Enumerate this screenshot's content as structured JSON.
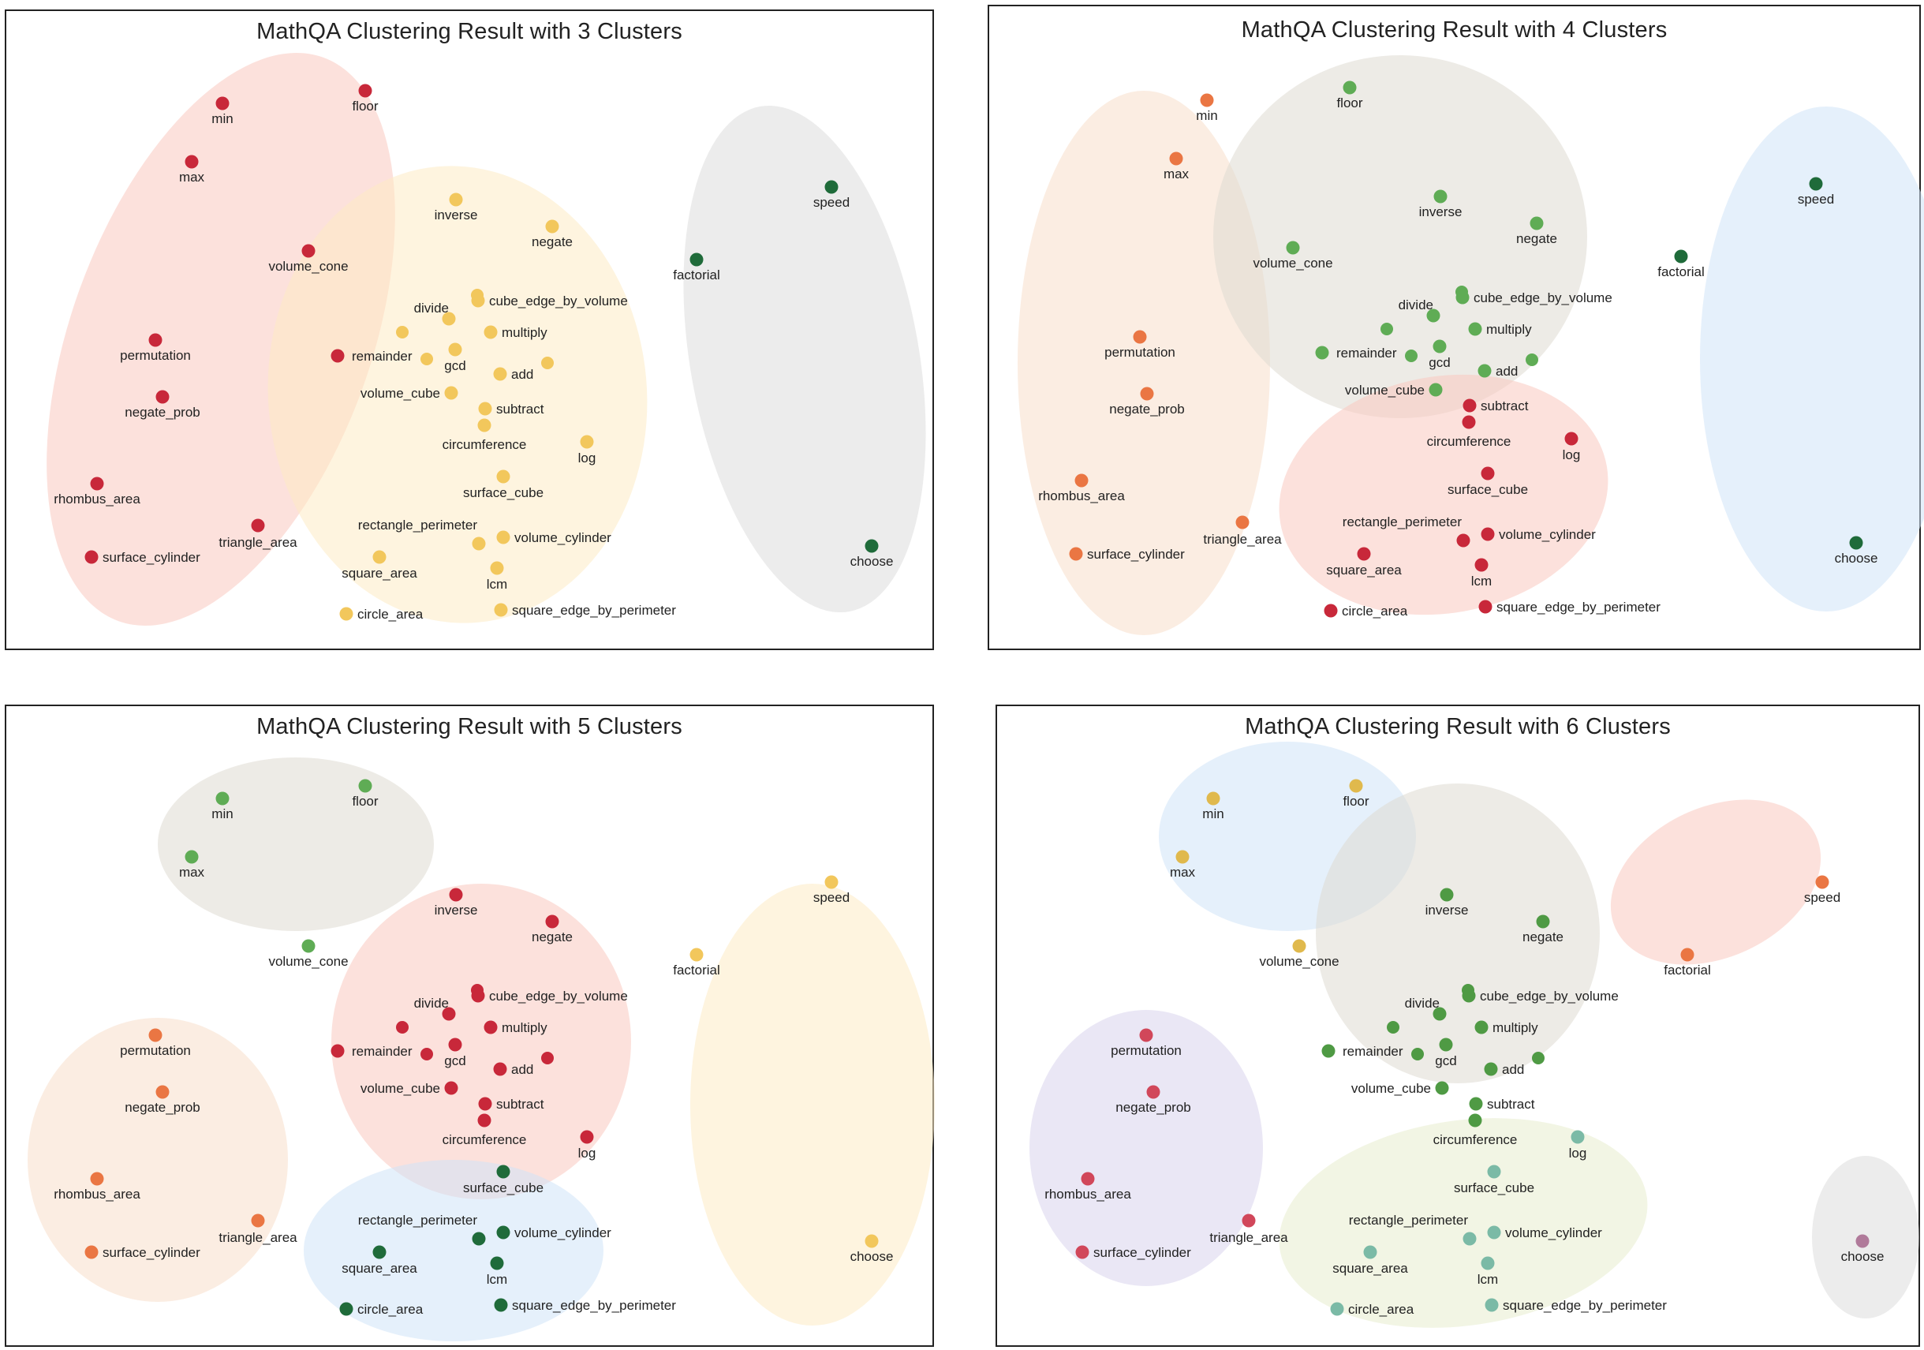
{
  "chart_data": [
    {
      "type": "scatter",
      "title": "MathQA Clustering Result with 3 Clusters",
      "clusters": [
        {
          "color": "#c8283a",
          "fill": "#f9c9c0",
          "members": [
            "min",
            "floor",
            "max",
            "volume_cone",
            "permutation",
            "negate_prob",
            "rhombus_area",
            "surface_cylinder",
            "triangle_area",
            "remainder"
          ]
        },
        {
          "color": "#f2c75c",
          "fill": "#fdebc4",
          "members": [
            "inverse",
            "negate",
            "divide",
            "cube_edge_by_volume",
            "multiply",
            "gcd",
            "add",
            "volume_cube",
            "subtract",
            "circumference",
            "log",
            "surface_cube",
            "rectangle_perimeter",
            "volume_cylinder",
            "square_area",
            "lcm",
            "circle_area",
            "square_edge_by_perimeter"
          ]
        },
        {
          "color": "#1f6b3a",
          "fill": "#dcdcdc",
          "members": [
            "speed",
            "factorial",
            "choose"
          ]
        }
      ]
    },
    {
      "type": "scatter",
      "title": "MathQA Clustering Result with 4 Clusters",
      "clusters": [
        {
          "color": "#ea7643",
          "fill": "#f8dfcb",
          "members": [
            "min",
            "max",
            "permutation",
            "negate_prob",
            "rhombus_area",
            "surface_cylinder",
            "triangle_area"
          ]
        },
        {
          "color": "#5fac55",
          "fill": "#dedad2",
          "members": [
            "floor",
            "inverse",
            "negate",
            "volume_cone",
            "divide",
            "cube_edge_by_volume",
            "multiply",
            "remainder",
            "gcd",
            "add",
            "volume_cube"
          ]
        },
        {
          "color": "#c8283a",
          "fill": "#f9c9c0",
          "members": [
            "subtract",
            "circumference",
            "log",
            "surface_cube",
            "rectangle_perimeter",
            "volume_cylinder",
            "square_area",
            "lcm",
            "circle_area",
            "square_edge_by_perimeter"
          ]
        },
        {
          "color": "#1f6b3a",
          "fill": "#cfe3f7",
          "members": [
            "speed",
            "factorial",
            "choose"
          ]
        }
      ]
    },
    {
      "type": "scatter",
      "title": "MathQA Clustering Result with 5 Clusters",
      "clusters": [
        {
          "color": "#5fac55",
          "fill": "#dedad2",
          "members": [
            "min",
            "floor",
            "max",
            "volume_cone"
          ]
        },
        {
          "color": "#c8283a",
          "fill": "#f9c9c0",
          "members": [
            "inverse",
            "negate",
            "divide",
            "cube_edge_by_volume",
            "multiply",
            "remainder",
            "gcd",
            "add",
            "volume_cube",
            "subtract",
            "circumference",
            "log"
          ]
        },
        {
          "color": "#ea7643",
          "fill": "#f8dfcb",
          "members": [
            "permutation",
            "negate_prob",
            "rhombus_area",
            "surface_cylinder",
            "triangle_area"
          ]
        },
        {
          "color": "#1f6b3a",
          "fill": "#cfe3f7",
          "members": [
            "surface_cube",
            "rectangle_perimeter",
            "volume_cylinder",
            "square_area",
            "lcm",
            "circle_area",
            "square_edge_by_perimeter"
          ]
        },
        {
          "color": "#f2c75c",
          "fill": "#fdebc4",
          "members": [
            "speed",
            "factorial",
            "choose"
          ]
        }
      ]
    },
    {
      "type": "scatter",
      "title": "MathQA Clustering Result with 6 Clusters",
      "clusters": [
        {
          "color": "#e0b94d",
          "fill": "#cfe3f7",
          "members": [
            "min",
            "floor",
            "max",
            "volume_cone"
          ]
        },
        {
          "color": "#4f9a44",
          "fill": "#dedad2",
          "members": [
            "inverse",
            "negate",
            "divide",
            "cube_edge_by_volume",
            "multiply",
            "remainder",
            "gcd",
            "add",
            "volume_cube",
            "subtract",
            "circumference"
          ]
        },
        {
          "color": "#ea7643",
          "fill": "#f9c9c0",
          "members": [
            "speed",
            "factorial"
          ]
        },
        {
          "color": "#d1475a",
          "fill": "#d9d4ec",
          "members": [
            "permutation",
            "negate_prob",
            "rhombus_area",
            "surface_cylinder",
            "triangle_area"
          ]
        },
        {
          "color": "#7bbaa6",
          "fill": "#e8ecce",
          "members": [
            "log",
            "surface_cube",
            "rectangle_perimeter",
            "volume_cylinder",
            "square_area",
            "lcm",
            "circle_area",
            "square_edge_by_perimeter"
          ]
        },
        {
          "color": "#b07a9a",
          "fill": "#dcdcdc",
          "members": [
            "choose"
          ]
        }
      ]
    }
  ]
}
